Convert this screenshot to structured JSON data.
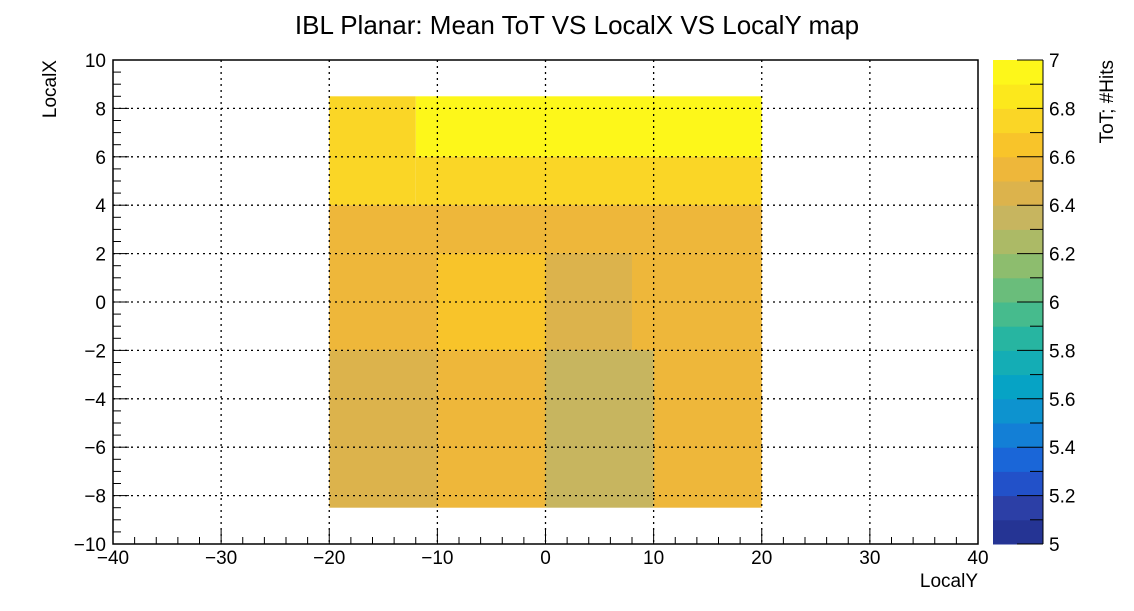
{
  "chart_data": {
    "type": "heatmap",
    "title": "IBL Planar: Mean ToT VS LocalX VS LocalY map",
    "xlabel": "LocalY",
    "ylabel": "LocalX",
    "zlabel": "ToT; #Hits",
    "xlim": [
      -40,
      40
    ],
    "ylim": [
      -10,
      10
    ],
    "zlim": [
      5,
      7
    ],
    "grid": true,
    "x_ticks": [
      -40,
      -30,
      -20,
      -10,
      0,
      10,
      20,
      30,
      40
    ],
    "y_ticks": [
      -10,
      -8,
      -6,
      -4,
      -2,
      0,
      2,
      4,
      6,
      8,
      10
    ],
    "z_ticks": [
      5,
      5.2,
      5.4,
      5.6,
      5.8,
      6,
      6.2,
      6.4,
      6.6,
      6.8,
      7
    ],
    "x_tick_labels": [
      "−40",
      "−30",
      "−20",
      "−10",
      "0",
      "10",
      "20",
      "30",
      "40"
    ],
    "y_tick_labels": [
      "−10",
      "−8",
      "−6",
      "−4",
      "−2",
      "0",
      "2",
      "4",
      "6",
      "8",
      "10"
    ],
    "z_tick_labels": [
      "5",
      "5.2",
      "5.4",
      "5.6",
      "5.8",
      "6",
      "6.2",
      "6.4",
      "6.6",
      "6.8",
      "7"
    ],
    "x_edges": [
      -20,
      20
    ],
    "y_edges": [
      -8.5,
      8.5
    ],
    "palette": [
      "#253494",
      "#2c3fa6",
      "#2251c9",
      "#1a66d8",
      "#137fd6",
      "#0d93cf",
      "#06a3c5",
      "#14adb5",
      "#27b5a1",
      "#46bb8d",
      "#6abd7b",
      "#8dbd6e",
      "#acba66",
      "#c7b55f",
      "#dcb34c",
      "#eeb73a",
      "#f8c42a",
      "#fad626",
      "#fce81c",
      "#fdf71a"
    ],
    "regions": [
      {
        "x": [
          -12,
          20
        ],
        "y": [
          6,
          8.5
        ],
        "z": 6.9
      },
      {
        "x": [
          -20,
          -12
        ],
        "y": [
          4,
          8.5
        ],
        "z": 6.7
      },
      {
        "x": [
          -12,
          20
        ],
        "y": [
          4,
          6
        ],
        "z": 6.75
      },
      {
        "x": [
          -20,
          20
        ],
        "y": [
          2,
          4
        ],
        "z": 6.6
      },
      {
        "x": [
          -20,
          -10
        ],
        "y": [
          -2,
          2
        ],
        "z": 6.5
      },
      {
        "x": [
          -10,
          0
        ],
        "y": [
          -2,
          2
        ],
        "z": 6.65
      },
      {
        "x": [
          0,
          8
        ],
        "y": [
          -2,
          2
        ],
        "z": 6.45
      },
      {
        "x": [
          8,
          20
        ],
        "y": [
          -2,
          2
        ],
        "z": 6.6
      },
      {
        "x": [
          -20,
          -10
        ],
        "y": [
          -8.5,
          -2
        ],
        "z": 6.4
      },
      {
        "x": [
          -10,
          0
        ],
        "y": [
          -8.5,
          -2
        ],
        "z": 6.6
      },
      {
        "x": [
          0,
          10
        ],
        "y": [
          -8.5,
          -2
        ],
        "z": 6.35
      },
      {
        "x": [
          10,
          20
        ],
        "y": [
          -8.5,
          -2
        ],
        "z": 6.55
      }
    ]
  }
}
